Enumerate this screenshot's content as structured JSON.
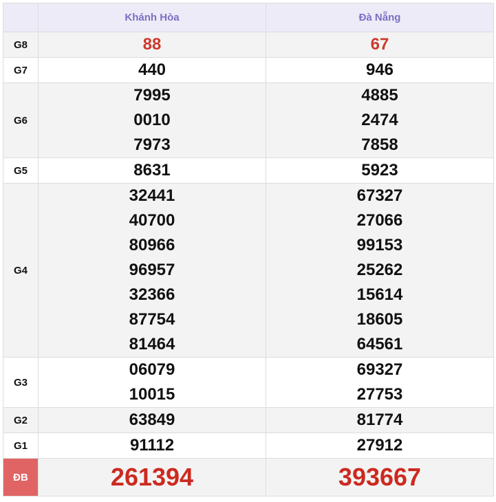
{
  "header": {
    "columns": [
      "",
      "Khánh Hòa",
      "Đà Nẵng"
    ]
  },
  "colors": {
    "header_bg": "#ecebf7",
    "header_text": "#7b6fc4",
    "highlight_red": "#cc2a20",
    "db_label_bg": "#e06464"
  },
  "rows": [
    {
      "label": "G8",
      "khanh_hoa": [
        "88"
      ],
      "da_nang": [
        "67"
      ]
    },
    {
      "label": "G7",
      "khanh_hoa": [
        "440"
      ],
      "da_nang": [
        "946"
      ]
    },
    {
      "label": "G6",
      "khanh_hoa": [
        "7995",
        "0010",
        "7973"
      ],
      "da_nang": [
        "4885",
        "2474",
        "7858"
      ]
    },
    {
      "label": "G5",
      "khanh_hoa": [
        "8631"
      ],
      "da_nang": [
        "5923"
      ]
    },
    {
      "label": "G4",
      "khanh_hoa": [
        "32441",
        "40700",
        "80966",
        "96957",
        "32366",
        "87754",
        "81464"
      ],
      "da_nang": [
        "67327",
        "27066",
        "99153",
        "25262",
        "15614",
        "18605",
        "64561"
      ]
    },
    {
      "label": "G3",
      "khanh_hoa": [
        "06079",
        "10015"
      ],
      "da_nang": [
        "69327",
        "27753"
      ]
    },
    {
      "label": "G2",
      "khanh_hoa": [
        "63849"
      ],
      "da_nang": [
        "81774"
      ]
    },
    {
      "label": "G1",
      "khanh_hoa": [
        "91112"
      ],
      "da_nang": [
        "27912"
      ]
    },
    {
      "label": "ĐB",
      "khanh_hoa": [
        "261394"
      ],
      "da_nang": [
        "393667"
      ]
    }
  ]
}
